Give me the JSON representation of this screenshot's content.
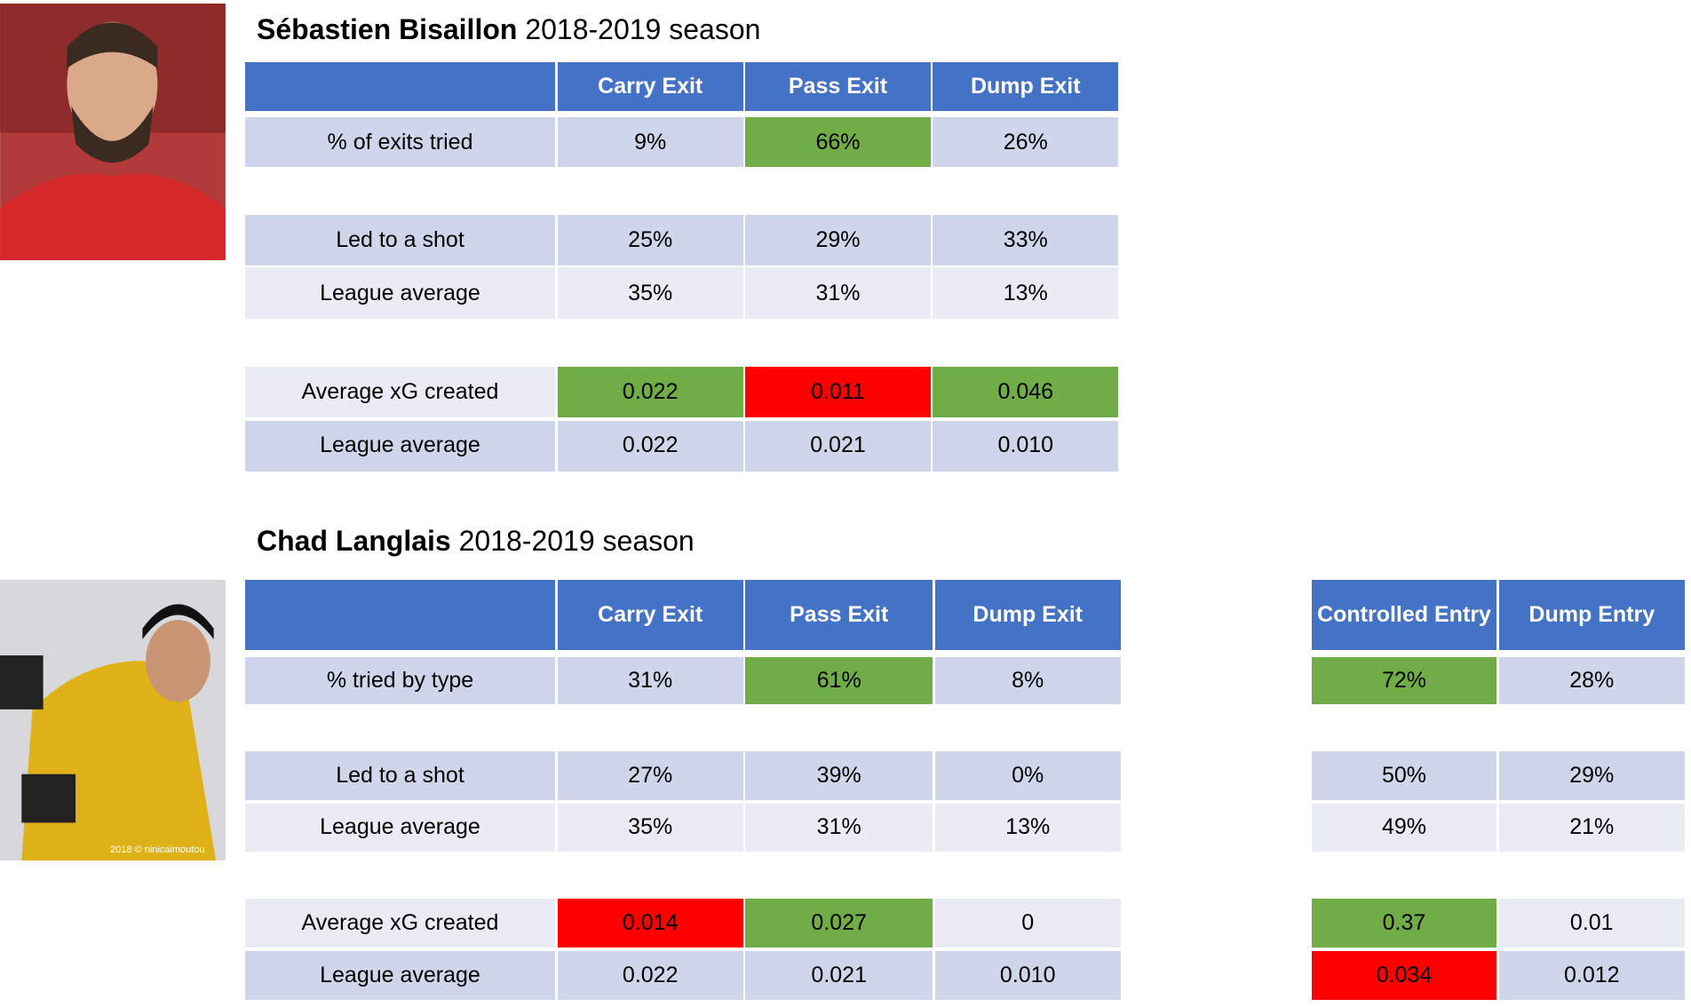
{
  "players": [
    {
      "name": "Sébastien Bisaillon",
      "season": "2018-2019 season",
      "tables": [
        {
          "columns": [
            "Carry Exit",
            "Pass Exit",
            "Dump Exit"
          ],
          "rows": [
            {
              "label": "% of exits tried",
              "cells": [
                "9%",
                {
                  "text": "66%",
                  "fill": "#70ad47"
                },
                "26%"
              ]
            },
            {
              "label": "Led to a shot",
              "cells": [
                "25%",
                "29%",
                "33%"
              ]
            },
            {
              "label": "League average",
              "cells": [
                "35%",
                "31%",
                "13%"
              ]
            },
            {
              "label": "Average xG created",
              "cells": [
                {
                  "text": "0.022",
                  "fill": "#70ad47"
                },
                {
                  "text": "0.011",
                  "fill": "#ff0000"
                },
                {
                  "text": "0.046",
                  "fill": "#70ad47"
                }
              ]
            },
            {
              "label": "League average",
              "cells": [
                "0.022",
                "0.021",
                "0.010"
              ]
            }
          ]
        }
      ]
    },
    {
      "name": "Chad Langlais",
      "season": "2018-2019 season",
      "photo_credit": "2018 © ninicaimoutou",
      "tables": [
        {
          "columns": [
            "Carry Exit",
            "Pass Exit",
            "Dump Exit"
          ],
          "rows": [
            {
              "label": "% tried by type",
              "cells": [
                "31%",
                {
                  "text": "61%",
                  "fill": "#70ad47"
                },
                "8%"
              ]
            },
            {
              "label": "Led to a shot",
              "cells": [
                "27%",
                "39%",
                "0%"
              ]
            },
            {
              "label": "League average",
              "cells": [
                "35%",
                "31%",
                "13%"
              ]
            },
            {
              "label": "Average xG created",
              "cells": [
                {
                  "text": "0.014",
                  "fill": "#ff0000"
                },
                {
                  "text": "0.027",
                  "fill": "#70ad47"
                },
                "0"
              ]
            },
            {
              "label": "League average",
              "cells": [
                "0.022",
                "0.021",
                "0.010"
              ]
            }
          ]
        },
        {
          "columns": [
            "Controlled Entry",
            "Dump Entry"
          ],
          "rows": [
            {
              "cells": [
                {
                  "text": "72%",
                  "fill": "#70ad47"
                },
                "28%"
              ]
            },
            {
              "cells": [
                "50%",
                "29%"
              ]
            },
            {
              "cells": [
                "49%",
                "21%"
              ]
            },
            {
              "cells": [
                {
                  "text": "0.37",
                  "fill": "#70ad47"
                },
                "0.01"
              ]
            },
            {
              "cells": [
                {
                  "text": "0.034",
                  "fill": "#ff0000"
                },
                "0.012"
              ]
            }
          ]
        }
      ]
    }
  ]
}
